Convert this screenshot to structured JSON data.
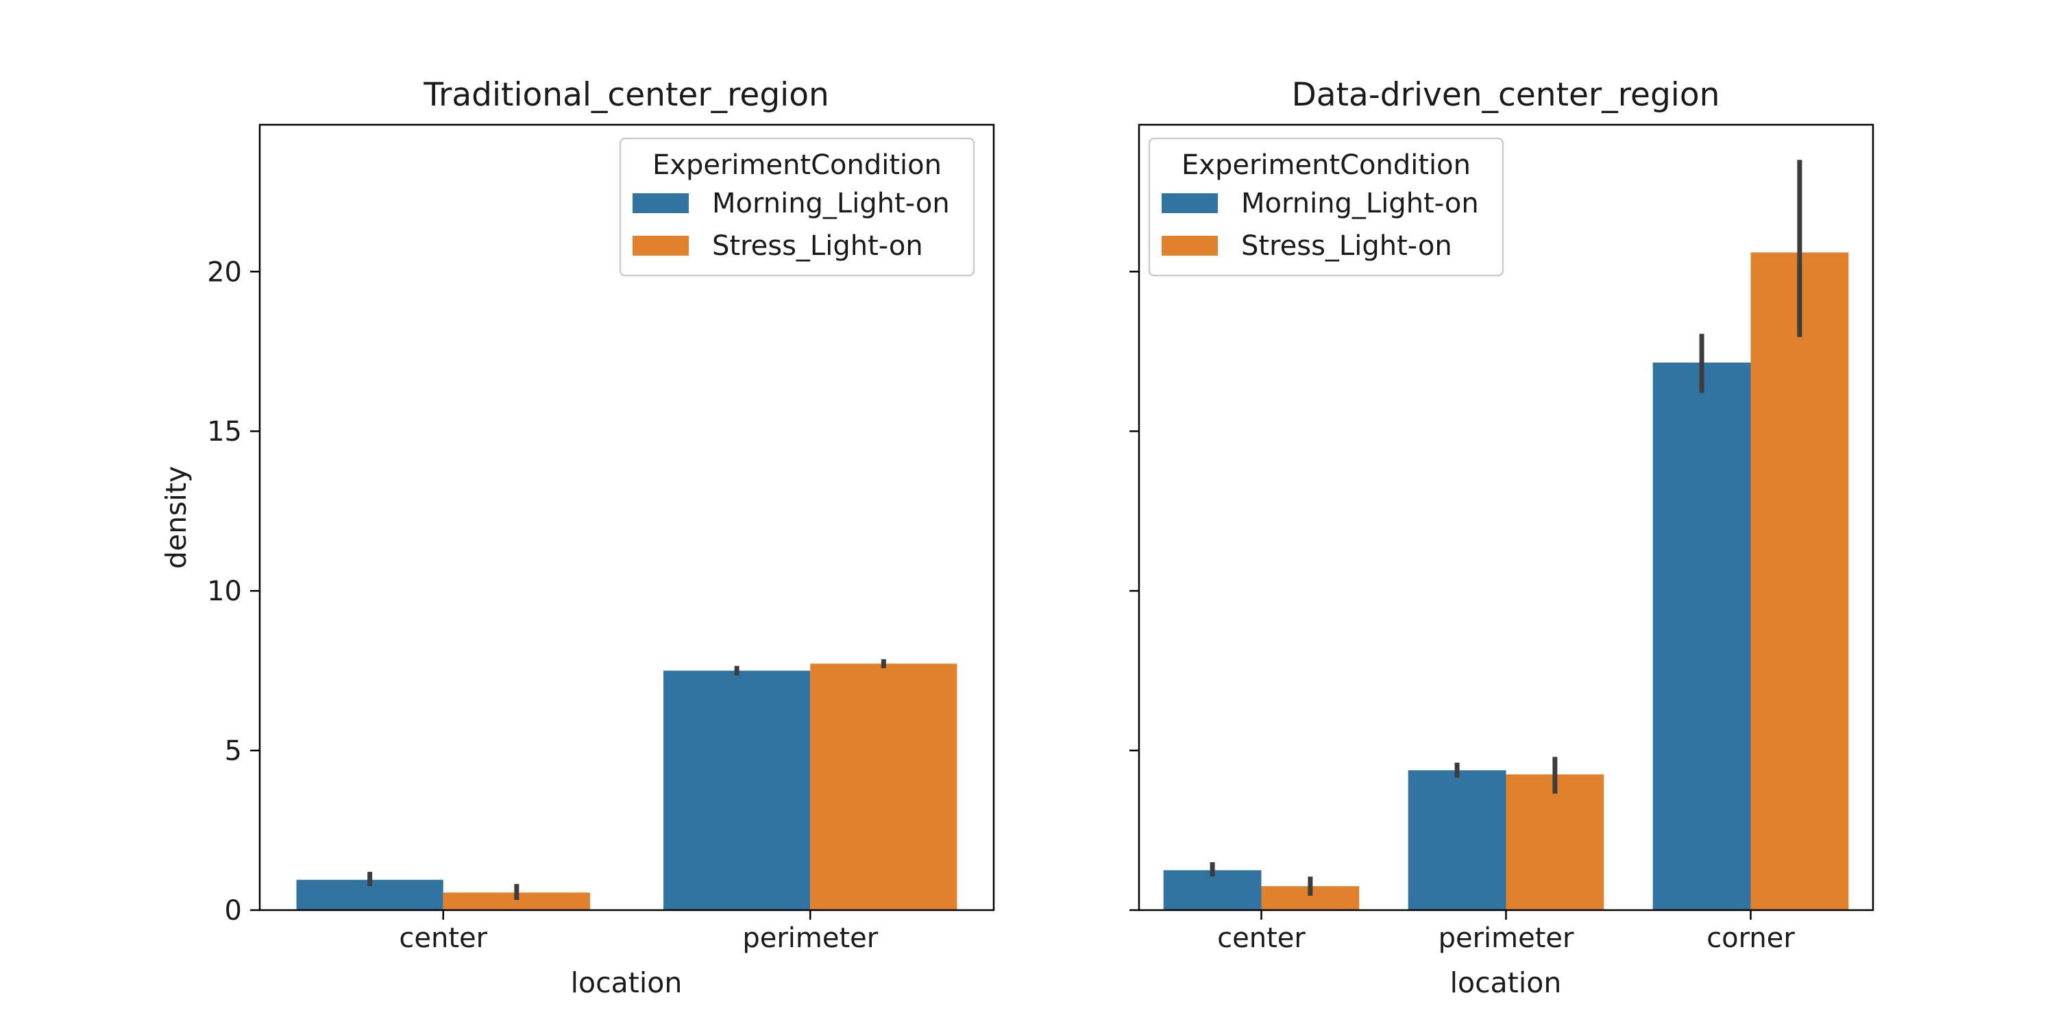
{
  "colors": {
    "Morning_Light-on": "#3274a1",
    "Stress_Light-on": "#e1812c",
    "error_bar": "#3d3d3d",
    "axes": "#000000"
  },
  "chart_data": [
    {
      "type": "bar",
      "title": "Traditional_center_region",
      "xlabel": "location",
      "ylabel": "density",
      "ylim": [
        0,
        24.6
      ],
      "yticks": [
        "0",
        "5",
        "10",
        "15",
        "20"
      ],
      "grid": false,
      "legend": {
        "title": "ExperimentCondition",
        "placement": "top-right",
        "entries": [
          "Morning_Light-on",
          "Stress_Light-on"
        ]
      },
      "categories": [
        "center",
        "perimeter"
      ],
      "series": [
        {
          "name": "Morning_Light-on",
          "values": [
            0.95,
            7.5
          ],
          "error_low": [
            0.75,
            7.35
          ],
          "error_high": [
            1.2,
            7.65
          ]
        },
        {
          "name": "Stress_Light-on",
          "values": [
            0.55,
            7.72
          ],
          "error_low": [
            0.32,
            7.58
          ],
          "error_high": [
            0.82,
            7.86
          ]
        }
      ]
    },
    {
      "type": "bar",
      "title": "Data-driven_center_region",
      "xlabel": "location",
      "ylabel": "",
      "ylim": [
        0,
        24.6
      ],
      "yticks": [
        "",
        "",
        "",
        "",
        ""
      ],
      "grid": false,
      "legend": {
        "title": "ExperimentCondition",
        "placement": "top-left",
        "entries": [
          "Morning_Light-on",
          "Stress_Light-on"
        ]
      },
      "categories": [
        "center",
        "perimeter",
        "corner"
      ],
      "series": [
        {
          "name": "Morning_Light-on",
          "values": [
            1.25,
            4.38,
            17.15
          ],
          "error_low": [
            1.05,
            4.15,
            16.2
          ],
          "error_high": [
            1.5,
            4.62,
            18.05
          ]
        },
        {
          "name": "Stress_Light-on",
          "values": [
            0.75,
            4.25,
            20.6
          ],
          "error_low": [
            0.45,
            3.65,
            17.95
          ],
          "error_high": [
            1.05,
            4.8,
            23.5
          ]
        }
      ]
    }
  ]
}
